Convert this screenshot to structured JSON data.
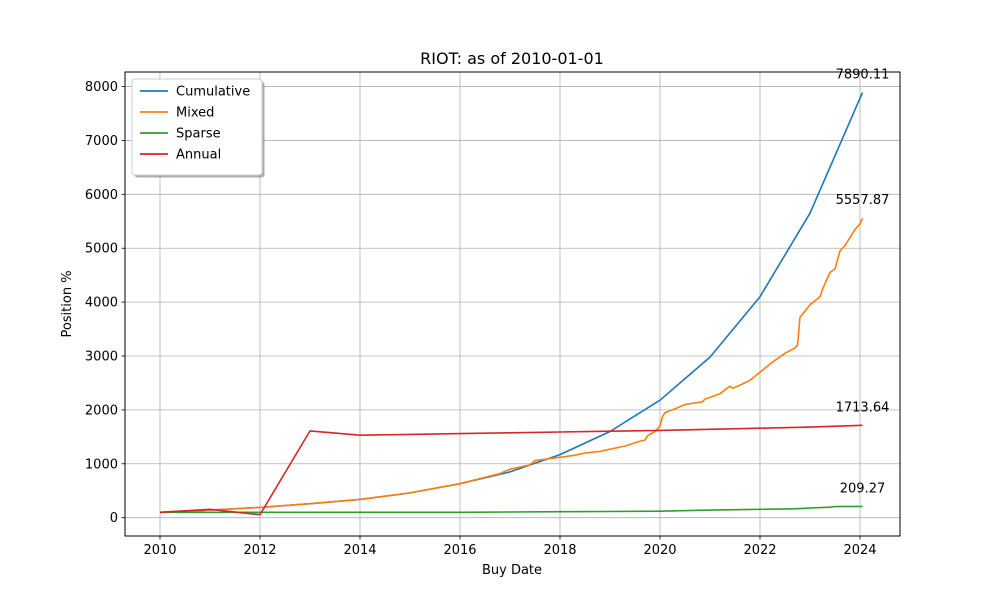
{
  "chart_data": {
    "type": "line",
    "title": "RIOT: as of 2010-01-01",
    "xlabel": "Buy Date",
    "ylabel": "Position %",
    "xlim": [
      2009.3,
      2024.8
    ],
    "ylim": [
      -340,
      8270
    ],
    "x_ticks": [
      2010,
      2012,
      2014,
      2016,
      2018,
      2020,
      2022,
      2024
    ],
    "y_ticks": [
      0,
      1000,
      2000,
      3000,
      4000,
      5000,
      6000,
      7000,
      8000
    ],
    "grid": true,
    "legend_placement": "top-left",
    "series": [
      {
        "name": "Cumulative",
        "color": "#1f77b4",
        "x": [
          2010,
          2011,
          2012,
          2013,
          2014,
          2015,
          2016,
          2017,
          2018,
          2019,
          2020,
          2021,
          2022,
          2023,
          2024.05
        ],
        "y": [
          100,
          140,
          190,
          260,
          340,
          460,
          630,
          850,
          1170,
          1600,
          2180,
          2980,
          4100,
          5650,
          7890.11
        ]
      },
      {
        "name": "Mixed",
        "color": "#ff7f0e",
        "x": [
          2010,
          2011,
          2012,
          2013,
          2014,
          2015,
          2016,
          2016.8,
          2017.0,
          2017.4,
          2017.5,
          2018.0,
          2018.3,
          2018.5,
          2018.8,
          2019.0,
          2019.3,
          2019.5,
          2019.6,
          2019.7,
          2019.75,
          2019.9,
          2020.0,
          2020.05,
          2020.1,
          2020.3,
          2020.5,
          2020.7,
          2020.85,
          2020.9,
          2021.2,
          2021.4,
          2021.45,
          2021.6,
          2021.8,
          2022.0,
          2022.2,
          2022.3,
          2022.5,
          2022.7,
          2022.75,
          2022.8,
          2023.0,
          2023.2,
          2023.25,
          2023.4,
          2023.5,
          2023.6,
          2023.7,
          2023.9,
          2024.0,
          2024.05
        ],
        "y": [
          100,
          140,
          190,
          260,
          340,
          460,
          630,
          820,
          900,
          980,
          1060,
          1120,
          1160,
          1200,
          1230,
          1270,
          1330,
          1390,
          1420,
          1440,
          1520,
          1600,
          1700,
          1880,
          1950,
          2020,
          2100,
          2130,
          2150,
          2200,
          2300,
          2440,
          2400,
          2460,
          2550,
          2700,
          2850,
          2920,
          3050,
          3150,
          3200,
          3720,
          3950,
          4100,
          4240,
          4550,
          4620,
          4950,
          5050,
          5350,
          5450,
          5557.87
        ]
      },
      {
        "name": "Sparse",
        "color": "#2ca02c",
        "x": [
          2010,
          2011,
          2012,
          2014,
          2016,
          2017,
          2018,
          2019,
          2020,
          2021,
          2022,
          2022.7,
          2023,
          2023.4,
          2023.5,
          2024.05
        ],
        "y": [
          100,
          100,
          100,
          100,
          100,
          105,
          110,
          115,
          120,
          140,
          155,
          165,
          180,
          195,
          205,
          209.27
        ]
      },
      {
        "name": "Annual",
        "color": "#d62728",
        "x": [
          2010,
          2011,
          2012,
          2013,
          2014,
          2015,
          2016,
          2017,
          2018,
          2019,
          2020,
          2021,
          2022,
          2023,
          2024.05
        ],
        "y": [
          100,
          155,
          55,
          1610,
          1530,
          1545,
          1560,
          1575,
          1590,
          1605,
          1620,
          1640,
          1660,
          1680,
          1713.64
        ]
      }
    ],
    "annotations": [
      {
        "text": "7890.11",
        "x": 2024.05,
        "y": 7890.11
      },
      {
        "text": "5557.87",
        "x": 2024.05,
        "y": 5557.87
      },
      {
        "text": "1713.64",
        "x": 2024.05,
        "y": 1713.64
      },
      {
        "text": "209.27",
        "x": 2024.05,
        "y": 209.27
      }
    ]
  }
}
